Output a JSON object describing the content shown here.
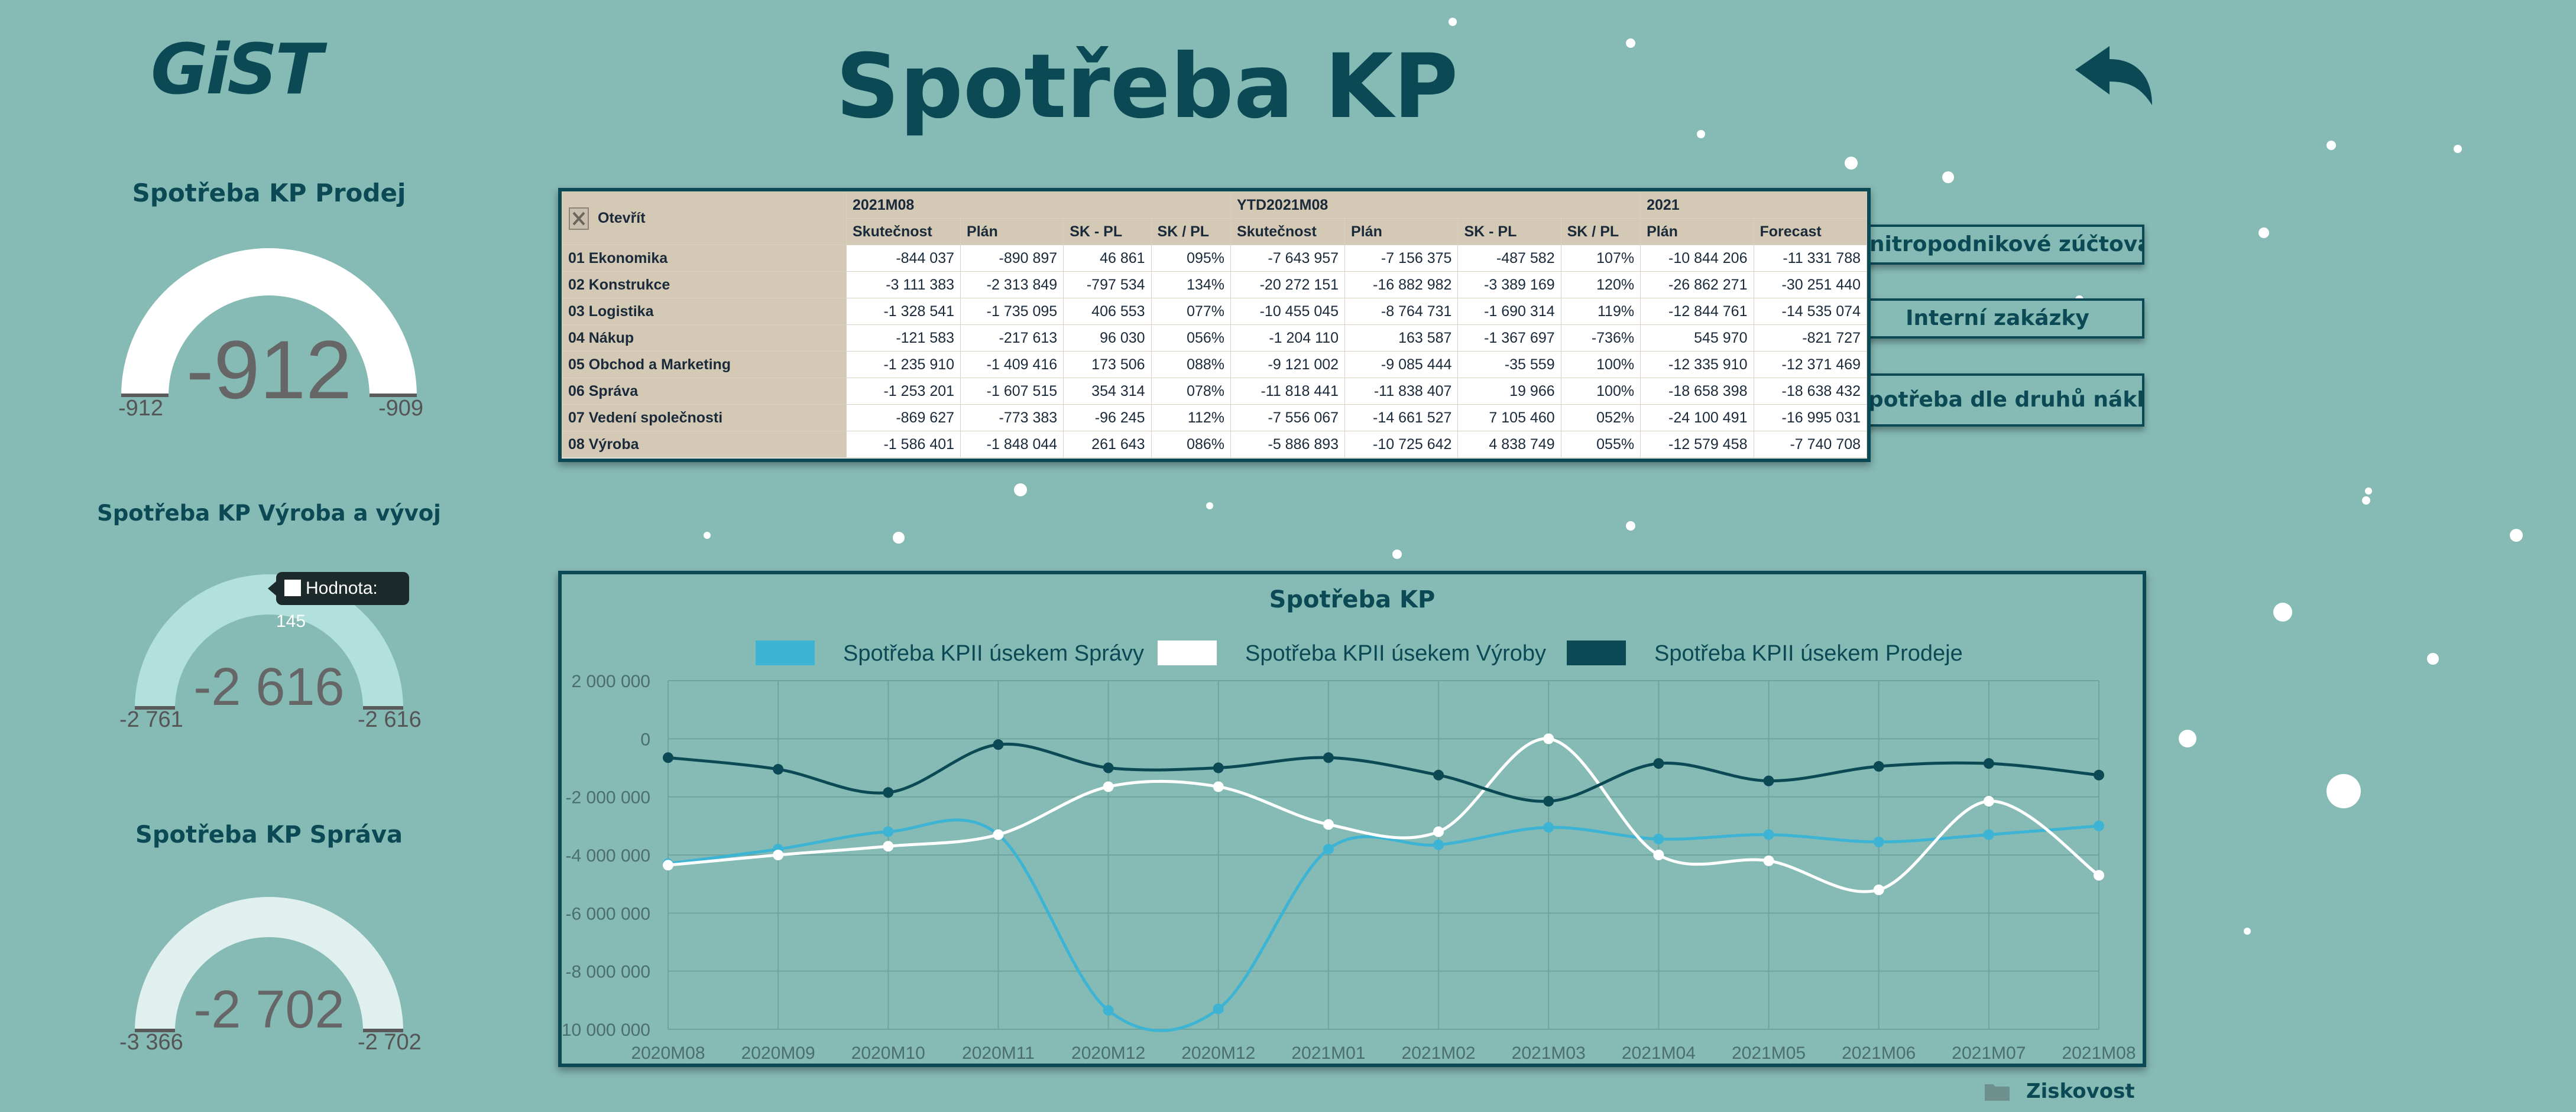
{
  "app": {
    "logo_text": "GiST",
    "title": "Spotřeba KP"
  },
  "colors": {
    "background": "#86bab5",
    "dark_teal": "#0b4a55",
    "blue": "#3db4d4",
    "white": "#ffffff",
    "table_header": "#d3c9b5"
  },
  "icons": {
    "back": "back-arrow-icon",
    "open": "excel-icon",
    "folder": "folder-icon"
  },
  "gauges": [
    {
      "title": "Spotřeba KP Prodej",
      "value": "-912",
      "min": "-912",
      "max": "-909",
      "fill_fraction": 1.0
    },
    {
      "title": "Spotřeba KP Výroba a vývoj",
      "value": "-2 616",
      "min": "-2 761",
      "max": "-2 616",
      "fill_fraction": 1.0
    },
    {
      "title": "Spotřeba KP Správa",
      "value": "-2 702",
      "min": "-3 366",
      "max": "-2 702",
      "fill_fraction": 1.0
    }
  ],
  "tooltip": {
    "text": "Hodnota: 145"
  },
  "side_buttons": [
    {
      "label": "Vnitropodnikové zúčtování"
    },
    {
      "label": "Interní zakázky"
    },
    {
      "label": "Spotřeba dle druhů nákladů"
    }
  ],
  "table": {
    "open_label": "Otevřít",
    "groups": [
      {
        "label": "2021M08",
        "span": 4
      },
      {
        "label": "YTD2021M08",
        "span": 4
      },
      {
        "label": "2021",
        "span": 2
      }
    ],
    "columns": [
      "Skutečnost",
      "Plán",
      "SK - PL",
      "SK / PL",
      "Skutečnost",
      "Plán",
      "SK - PL",
      "SK / PL",
      "Plán",
      "Forecast"
    ],
    "rows": [
      {
        "label": "01 Ekonomika",
        "values": [
          "-844 037",
          "-890 897",
          "46 861",
          "095%",
          "-7 643 957",
          "-7 156 375",
          "-487 582",
          "107%",
          "-10 844 206",
          "-11 331 788"
        ]
      },
      {
        "label": "02 Konstrukce",
        "values": [
          "-3 111 383",
          "-2 313 849",
          "-797 534",
          "134%",
          "-20 272 151",
          "-16 882 982",
          "-3 389 169",
          "120%",
          "-26 862 271",
          "-30 251 440"
        ]
      },
      {
        "label": "03 Logistika",
        "values": [
          "-1 328 541",
          "-1 735 095",
          "406 553",
          "077%",
          "-10 455 045",
          "-8 764 731",
          "-1 690 314",
          "119%",
          "-12 844 761",
          "-14 535 074"
        ]
      },
      {
        "label": "04 Nákup",
        "values": [
          "-121 583",
          "-217 613",
          "96 030",
          "056%",
          "-1 204 110",
          "163 587",
          "-1 367 697",
          "-736%",
          "545 970",
          "-821 727"
        ]
      },
      {
        "label": "05 Obchod a Marketing",
        "values": [
          "-1 235 910",
          "-1 409 416",
          "173 506",
          "088%",
          "-9 121 002",
          "-9 085 444",
          "-35 559",
          "100%",
          "-12 335 910",
          "-12 371 469"
        ]
      },
      {
        "label": "06 Správa",
        "values": [
          "-1 253 201",
          "-1 607 515",
          "354 314",
          "078%",
          "-11 818 441",
          "-11 838 407",
          "19 966",
          "100%",
          "-18 658 398",
          "-18 638 432"
        ]
      },
      {
        "label": "07 Vedení společnosti",
        "values": [
          "-869 627",
          "-773 383",
          "-96 245",
          "112%",
          "-7 556 067",
          "-14 661 527",
          "7 105 460",
          "052%",
          "-24 100 491",
          "-16 995 031"
        ]
      },
      {
        "label": "08 Výroba",
        "values": [
          "-1 586 401",
          "-1 848 044",
          "261 643",
          "086%",
          "-5 886 893",
          "-10 725 642",
          "4 838 749",
          "055%",
          "-12 579 458",
          "-7 740 708"
        ]
      }
    ]
  },
  "chart_data": {
    "type": "line",
    "title": "Spotřeba KP",
    "categories": [
      "2020M08",
      "2020M09",
      "2020M10",
      "2020M11",
      "2020M12",
      "2020M12",
      "2021M01",
      "2021M02",
      "2021M03",
      "2021M04",
      "2021M05",
      "2021M06",
      "2021M07",
      "2021M08"
    ],
    "y_ticks": [
      "2 000 000",
      "0",
      "-2 000 000",
      "-4 000 000",
      "-6 000 000",
      "-8 000 000",
      "-10 000 000"
    ],
    "ylim": [
      -10000000,
      2000000
    ],
    "grid": true,
    "legend_position": "top",
    "series": [
      {
        "name": "Spotřeba KPII úsekem Správy",
        "color": "#3db4d4",
        "values": [
          -4300000,
          -3800000,
          -3200000,
          -3300000,
          -9350000,
          -9300000,
          -3800000,
          -3650000,
          -3050000,
          -3450000,
          -3300000,
          -3550000,
          -3300000,
          -3000000
        ]
      },
      {
        "name": "Spotřeba KPII úsekem Výroby",
        "color": "#ffffff",
        "values": [
          -4350000,
          -4000000,
          -3700000,
          -3300000,
          -1650000,
          -1650000,
          -2950000,
          -3200000,
          0,
          -4000000,
          -4200000,
          -5200000,
          -2150000,
          -4700000
        ]
      },
      {
        "name": "Spotřeba KPII úsekem Prodeje",
        "color": "#0b4a55",
        "values": [
          -650000,
          -1050000,
          -1850000,
          -200000,
          -1000000,
          -1000000,
          -650000,
          -1250000,
          -2150000,
          -850000,
          -1450000,
          -950000,
          -850000,
          -1250000
        ]
      }
    ]
  },
  "footer": {
    "link_label": "Ziskovost"
  }
}
